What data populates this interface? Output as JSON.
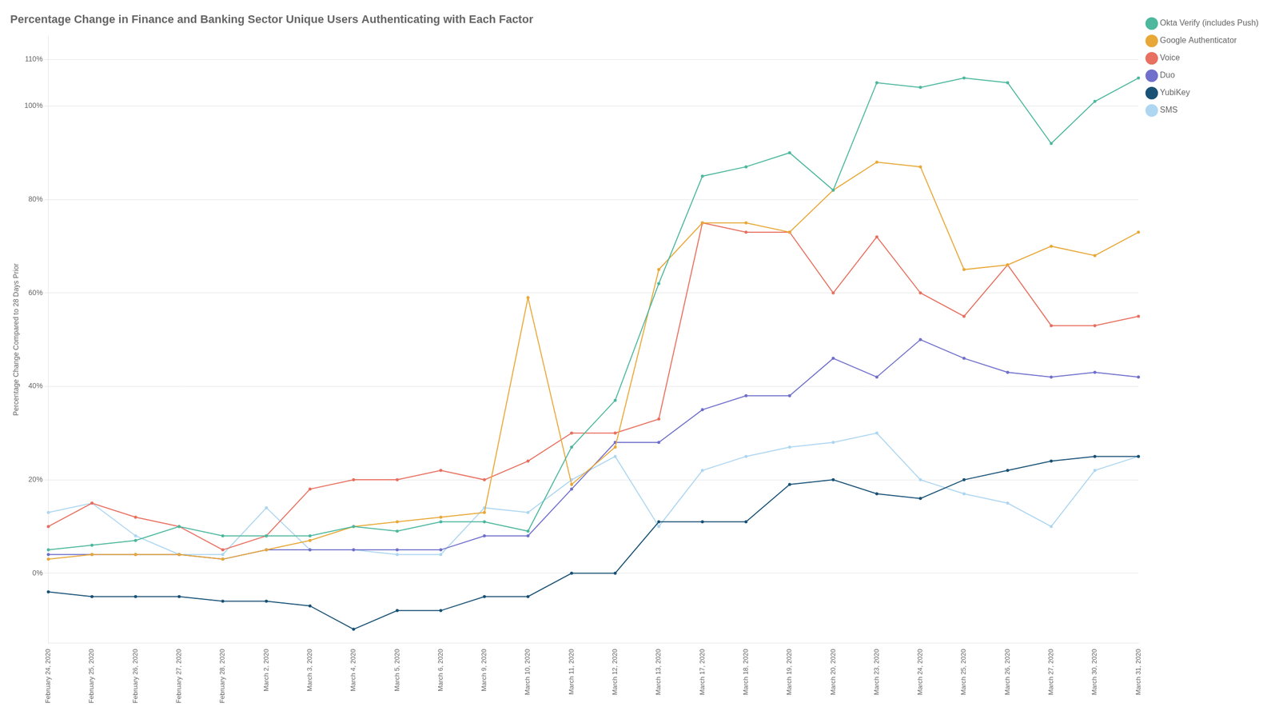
{
  "chart_data": {
    "type": "line",
    "title": "Percentage Change in Finance and Banking Sector Unique Users Authenticating with Each Factor",
    "ylabel": "Percentage Change Compared to 28 Days Prior",
    "categories": [
      "February 24, 2020",
      "February 25, 2020",
      "February 26, 2020",
      "February 27, 2020",
      "February 28, 2020",
      "March 2, 2020",
      "March 3, 2020",
      "March 4, 2020",
      "March 5, 2020",
      "March 6, 2020",
      "March 9, 2020",
      "March 10, 2020",
      "March 11, 2020",
      "March 12, 2020",
      "March 13, 2020",
      "March 17, 2020",
      "March 18, 2020",
      "March 19, 2020",
      "March 20, 2020",
      "March 23, 2020",
      "March 24, 2020",
      "March 25, 2020",
      "March 26, 2020",
      "March 27, 2020",
      "March 30, 2020",
      "March 31, 2020"
    ],
    "series": [
      {
        "name": "Okta Verify (includes Push)",
        "color": "#4db89e",
        "values": [
          5,
          6,
          7,
          10,
          8,
          8,
          8,
          10,
          9,
          11,
          11,
          9,
          27,
          37,
          62,
          85,
          87,
          90,
          82,
          105,
          104,
          106,
          105,
          92,
          101,
          106
        ]
      },
      {
        "name": "Google Authenticator",
        "color": "#e8a838",
        "values": [
          3,
          4,
          4,
          4,
          3,
          5,
          7,
          10,
          11,
          12,
          13,
          59,
          19,
          27,
          65,
          75,
          75,
          73,
          82,
          88,
          87,
          65,
          66,
          70,
          68,
          73
        ]
      },
      {
        "name": "Voice",
        "color": "#e87060",
        "values": [
          10,
          15,
          12,
          10,
          5,
          8,
          18,
          20,
          20,
          22,
          20,
          24,
          30,
          30,
          33,
          75,
          73,
          73,
          60,
          72,
          60,
          55,
          66,
          53,
          53,
          55
        ]
      },
      {
        "name": "Duo",
        "color": "#7070cc",
        "values": [
          4,
          4,
          4,
          4,
          3,
          5,
          5,
          5,
          5,
          5,
          8,
          8,
          18,
          28,
          28,
          35,
          38,
          38,
          46,
          42,
          50,
          46,
          43,
          42,
          43,
          42
        ]
      },
      {
        "name": "YubiKey",
        "color": "#1a5276",
        "values": [
          -4,
          -5,
          -5,
          -5,
          -6,
          -6,
          -7,
          -12,
          -8,
          -8,
          -5,
          -5,
          0,
          0,
          11,
          11,
          11,
          19,
          20,
          17,
          16,
          20,
          22,
          24,
          25,
          25
        ]
      },
      {
        "name": "SMS",
        "color": "#aed6f1",
        "values": [
          13,
          15,
          8,
          4,
          4,
          14,
          5,
          5,
          4,
          4,
          14,
          13,
          20,
          25,
          10,
          22,
          25,
          27,
          28,
          30,
          20,
          17,
          15,
          10,
          22,
          25
        ]
      }
    ],
    "ylim": [
      -15,
      115
    ],
    "yticks": [
      {
        "value": 0,
        "label": "0%"
      },
      {
        "value": 20,
        "label": "20%"
      },
      {
        "value": 40,
        "label": "40%"
      },
      {
        "value": 60,
        "label": "60%"
      },
      {
        "value": 80,
        "label": "80%"
      },
      {
        "value": 100,
        "label": "100%"
      },
      {
        "value": 110,
        "label": "110%"
      }
    ],
    "grid": true,
    "legend": "right"
  }
}
